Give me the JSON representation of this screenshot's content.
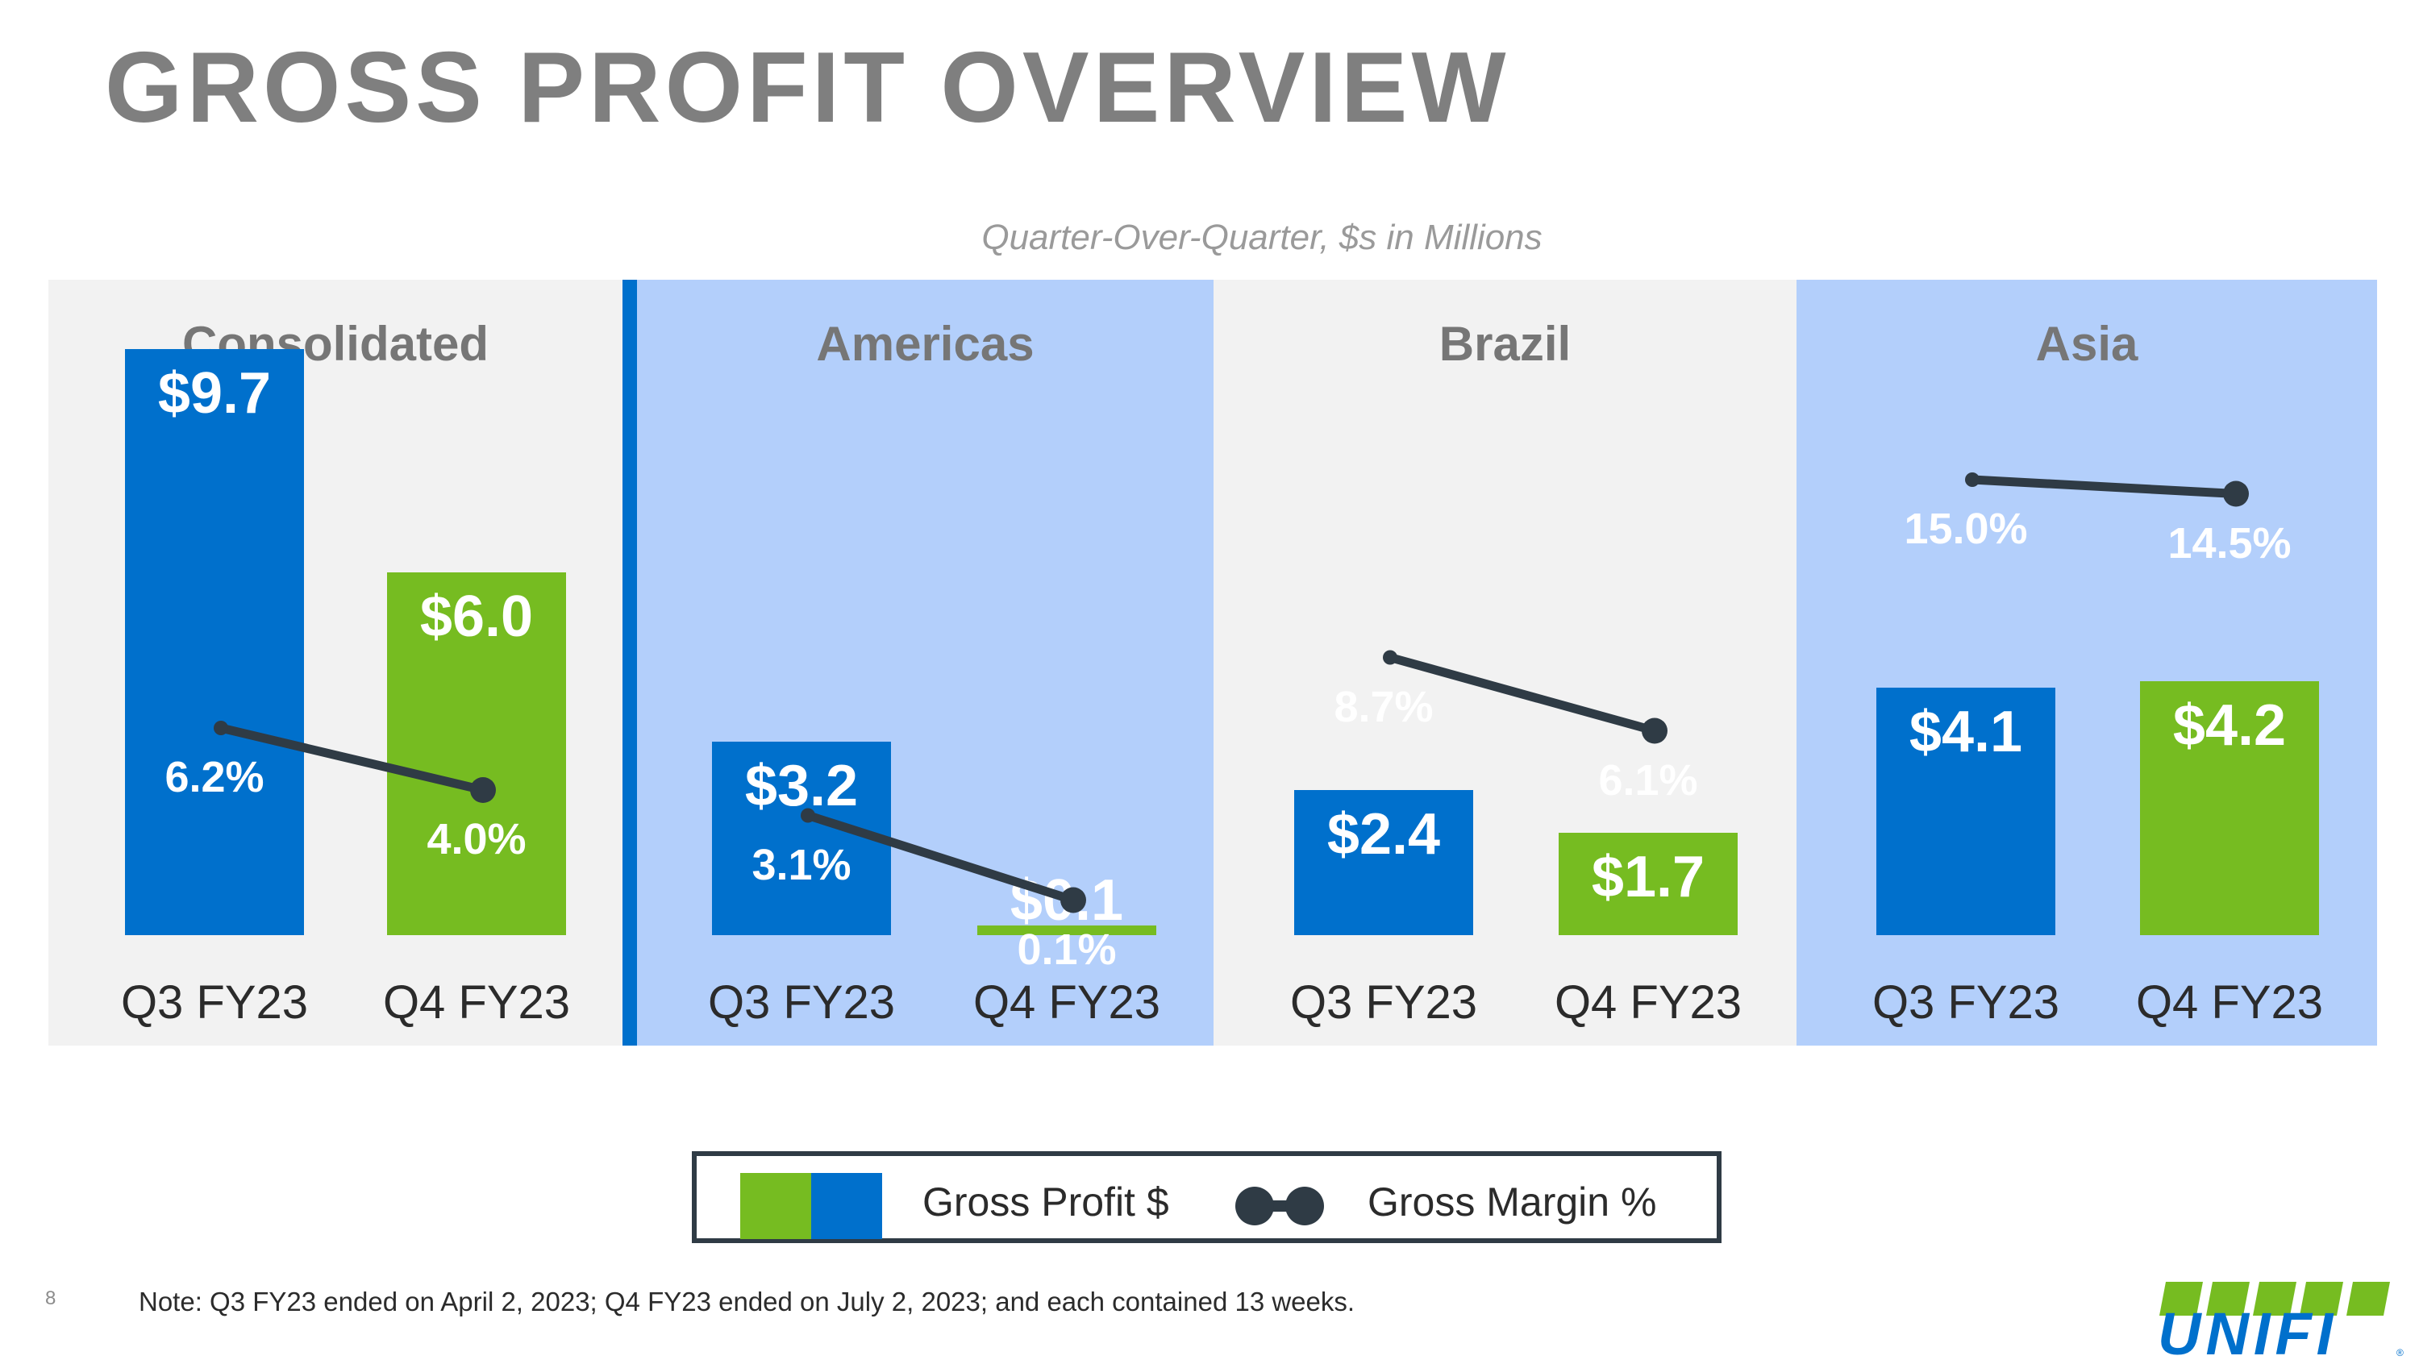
{
  "title": "GROSS PROFIT OVERVIEW",
  "subtitle": "Quarter-Over-Quarter, $s in Millions",
  "colors": {
    "q3_bar": "#0070cc",
    "q4_bar": "#76bc21",
    "panel_gray": "#f2f2f2",
    "panel_blue": "#b3cffb",
    "margin_line": "#2f3b45",
    "title_gray": "#7f7f7f"
  },
  "chart_data": {
    "type": "bar",
    "title": "GROSS PROFIT OVERVIEW",
    "subtitle": "Quarter-Over-Quarter, $s in Millions",
    "categories": [
      "Q3 FY23",
      "Q4 FY23"
    ],
    "panels": [
      {
        "name": "Consolidated",
        "background": "#f2f2f2",
        "gross_profit": [
          9.7,
          6.0
        ],
        "gross_profit_labels": [
          "$9.7",
          "$6.0"
        ],
        "gross_margin": [
          6.2,
          4.0
        ],
        "gross_margin_labels": [
          "6.2%",
          "4.0%"
        ]
      },
      {
        "name": "Americas",
        "background": "#b3cffb",
        "gross_profit": [
          3.2,
          0.1
        ],
        "gross_profit_labels": [
          "$3.2",
          "$0.1"
        ],
        "gross_margin": [
          3.1,
          0.1
        ],
        "gross_margin_labels": [
          "3.1%",
          "0.1%"
        ]
      },
      {
        "name": "Brazil",
        "background": "#f2f2f2",
        "gross_profit": [
          2.4,
          1.7
        ],
        "gross_profit_labels": [
          "$2.4",
          "$1.7"
        ],
        "gross_margin": [
          8.7,
          6.1
        ],
        "gross_margin_labels": [
          "8.7%",
          "6.1%"
        ]
      },
      {
        "name": "Asia",
        "background": "#b3cffb",
        "gross_profit": [
          4.1,
          4.2
        ],
        "gross_profit_labels": [
          "$4.1",
          "$4.2"
        ],
        "gross_margin": [
          15.0,
          14.5
        ],
        "gross_margin_labels": [
          "15.0%",
          "14.5%"
        ]
      }
    ],
    "legend": {
      "gross_profit": "Gross Profit $",
      "gross_margin": "Gross Margin %",
      "position": "bottom-center"
    },
    "grid": false
  },
  "footnote": "Note: Q3 FY23 ended on April 2, 2023; Q4 FY23 ended on July 2, 2023; and each contained 13 weeks.",
  "page_number": "8",
  "logo": {
    "text": "UNIFI",
    "mark": "®",
    "colors": [
      "#76bc21",
      "#0070cc"
    ]
  }
}
